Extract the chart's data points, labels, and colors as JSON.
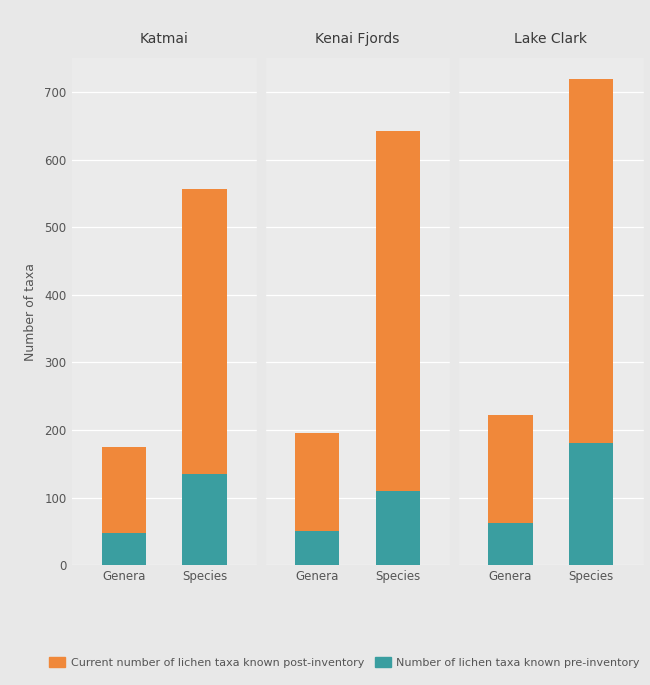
{
  "parks": [
    "Katmai",
    "Kenai Fjords",
    "Lake Clark"
  ],
  "categories": [
    "Genera",
    "Species"
  ],
  "pre_inventory": {
    "Katmai": [
      47,
      135
    ],
    "Kenai Fjords": [
      50,
      110
    ],
    "Lake Clark": [
      63,
      180
    ]
  },
  "total_post": {
    "Katmai": [
      175,
      557
    ],
    "Kenai Fjords": [
      195,
      643
    ],
    "Lake Clark": [
      222,
      720
    ]
  },
  "color_post": "#F0883A",
  "color_pre": "#3A9EA0",
  "background_panel": "#EBEBEB",
  "background_fig": "#E8E8E8",
  "strip_bg": "#D4D4D4",
  "grid_color": "#FFFFFF",
  "ylabel": "Number of taxa",
  "ylim": [
    0,
    750
  ],
  "yticks": [
    0,
    100,
    200,
    300,
    400,
    500,
    600,
    700
  ],
  "title_fontsize": 10,
  "axis_fontsize": 9,
  "tick_fontsize": 8.5,
  "legend_label_post": "Current number of lichen taxa known post-inventory",
  "legend_label_pre": "Number of lichen taxa known pre-inventory",
  "bar_width": 0.55
}
